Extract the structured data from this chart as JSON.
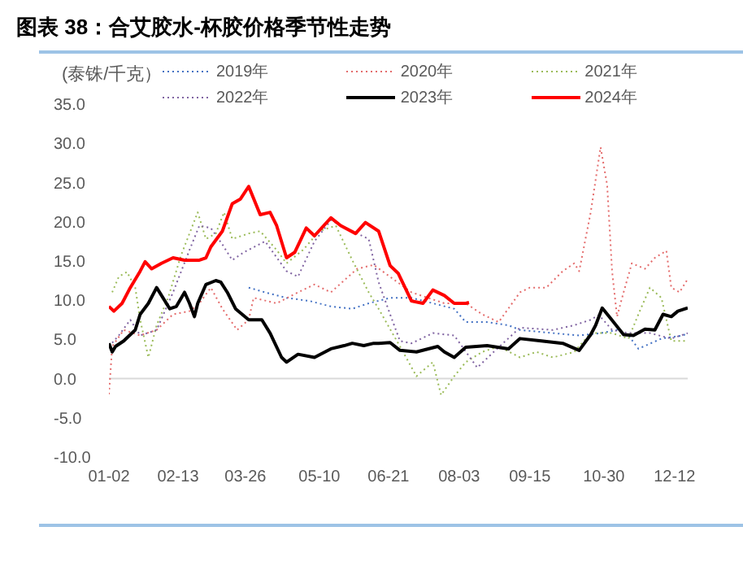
{
  "chart_data": {
    "type": "line",
    "title": "图表 38：合艾胶水-杯胶价格季节性走势",
    "ylabel": "(泰铢/千克）",
    "xlim": [
      "--01-02",
      "--12-20"
    ],
    "xticks": [
      {
        "value": "--01-02",
        "label": "01-02"
      },
      {
        "value": "--02-13",
        "label": "02-13"
      },
      {
        "value": "--03-26",
        "label": "03-26"
      },
      {
        "value": "--05-10",
        "label": "05-10"
      },
      {
        "value": "--06-21",
        "label": "06-21"
      },
      {
        "value": "--08-03",
        "label": "08-03"
      },
      {
        "value": "--09-15",
        "label": "09-15"
      },
      {
        "value": "--10-30",
        "label": "10-30"
      },
      {
        "value": "--12-12",
        "label": "12-12"
      }
    ],
    "ylim": [
      -10,
      35
    ],
    "yticks": [
      {
        "value": -10,
        "label": "-10.0"
      },
      {
        "value": -5,
        "label": "-5.0"
      },
      {
        "value": 0,
        "label": "0.0"
      },
      {
        "value": 5,
        "label": "5.0"
      },
      {
        "value": 10,
        "label": "10.0"
      },
      {
        "value": 15,
        "label": "15.0"
      },
      {
        "value": 20,
        "label": "20.0"
      },
      {
        "value": 25,
        "label": "25.0"
      },
      {
        "value": 30,
        "label": "30.0"
      },
      {
        "value": 35,
        "label": "35.0"
      }
    ],
    "grid": false,
    "legend": "top",
    "marker": "none",
    "ref_lines": [
      {
        "axis": "y",
        "value": 0,
        "color": "#d9d9d9"
      }
    ],
    "series": [
      {
        "name": "2019年",
        "color": "#4472c4",
        "line_style": "dotted",
        "x": [
          "--03-28",
          "--04-07",
          "--04-20",
          "--05-04",
          "--05-17",
          "--05-30",
          "--06-09",
          "--06-22",
          "--07-05",
          "--07-18",
          "--07-31",
          "--08-07",
          "--08-20",
          "--09-02",
          "--09-09",
          "--09-29",
          "--10-15",
          "--10-28",
          "--11-07",
          "--11-14",
          "--11-20",
          "--12-04",
          "--12-17",
          "--12-20"
        ],
        "values": [
          11.6,
          11,
          10.3,
          9.9,
          9.2,
          8.9,
          9.6,
          10.3,
          10.3,
          9.6,
          8.9,
          7.2,
          7.2,
          6.8,
          6.2,
          5.8,
          5.5,
          5.8,
          6.2,
          5.5,
          3.8,
          5.1,
          5.5,
          5.8
        ]
      },
      {
        "name": "2020年",
        "color": "#e46c6c",
        "line_style": "dotted",
        "x": [
          "--01-02",
          "--01-04",
          "--01-11",
          "--01-21",
          "--01-31",
          "--02-10",
          "--02-20",
          "--02-26",
          "--03-05",
          "--03-12",
          "--03-21",
          "--03-28",
          "--03-31",
          "--04-14",
          "--04-27",
          "--05-07",
          "--05-17",
          "--05-26",
          "--06-02",
          "--06-12",
          "--07-05",
          "--07-25",
          "--08-07",
          "--08-17",
          "--08-27",
          "--09-09",
          "--09-15",
          "--09-25",
          "--10-05",
          "--10-12",
          "--10-15",
          "--10-22",
          "--10-28",
          "--11-01",
          "--11-04",
          "--11-07",
          "--11-11",
          "--11-16",
          "--11-24",
          "--11-30",
          "--12-07",
          "--12-10",
          "--12-15",
          "--12-20"
        ],
        "values": [
          -2,
          4.1,
          6.2,
          5.5,
          6.2,
          8.2,
          8.6,
          9.6,
          11.6,
          8.9,
          6.2,
          7.5,
          10.3,
          9.6,
          11,
          12,
          11,
          12.7,
          14,
          14.5,
          11,
          9.6,
          9.6,
          8.2,
          7.2,
          11,
          11.6,
          11.6,
          13.7,
          14.7,
          13.7,
          21.2,
          29.5,
          24.7,
          13.7,
          7.9,
          11,
          14.7,
          14,
          15.4,
          16.3,
          11.6,
          11,
          12.7
        ]
      },
      {
        "name": "2021年",
        "color": "#9bbb59",
        "line_style": "dotted",
        "x": [
          "--01-04",
          "--01-08",
          "--01-13",
          "--01-18",
          "--01-21",
          "--01-26",
          "--01-31",
          "--02-07",
          "--02-15",
          "--02-25",
          "--03-02",
          "--03-08",
          "--03-13",
          "--03-18",
          "--03-28",
          "--04-04",
          "--04-14",
          "--04-20",
          "--04-30",
          "--05-10",
          "--05-20",
          "--05-30",
          "--06-09",
          "--06-15",
          "--06-28",
          "--07-08",
          "--07-18",
          "--07-23",
          "--07-31",
          "--08-07",
          "--08-17",
          "--08-27",
          "--09-09",
          "--09-19",
          "--09-29",
          "--10-12",
          "--10-22",
          "--11-04",
          "--11-14",
          "--11-20",
          "--11-27",
          "--12-04",
          "--12-10",
          "--12-20"
        ],
        "values": [
          11,
          13,
          13.6,
          11.6,
          7.5,
          2.7,
          6.8,
          10.3,
          15.8,
          21.2,
          17.8,
          18.5,
          21.2,
          17.8,
          18.5,
          18.8,
          16.4,
          14.7,
          16.4,
          18.8,
          19.5,
          15.1,
          11,
          8.9,
          4.1,
          0.3,
          2.1,
          -2.1,
          0.3,
          2.1,
          3.4,
          4.1,
          2.7,
          3.4,
          2.7,
          3.4,
          5.8,
          5.8,
          5.1,
          8.2,
          11.6,
          10.3,
          4.8,
          4.8
        ]
      },
      {
        "name": "2022年",
        "color": "#8064a2",
        "line_style": "dotted",
        "x": [
          "--01-02",
          "--01-08",
          "--01-15",
          "--01-21",
          "--01-31",
          "--02-10",
          "--02-20",
          "--02-26",
          "--03-05",
          "--03-12",
          "--03-18",
          "--03-25",
          "--04-07",
          "--04-20",
          "--04-27",
          "--05-07",
          "--05-17",
          "--05-26",
          "--06-02",
          "--06-09",
          "--06-15",
          "--06-22",
          "--06-28",
          "--07-05",
          "--07-18",
          "--07-31",
          "--08-14",
          "--08-24",
          "--09-09",
          "--09-29",
          "--10-12",
          "--10-22",
          "--10-27",
          "--11-04",
          "--11-14",
          "--11-27",
          "--12-10",
          "--12-20"
        ],
        "values": [
          4.1,
          5.5,
          7.5,
          5.5,
          6.2,
          11,
          16.4,
          19.5,
          19.2,
          17.1,
          15.1,
          16.1,
          17.5,
          13.7,
          13,
          17.5,
          20.2,
          19.2,
          18.5,
          17.8,
          12.3,
          8.2,
          4.8,
          4.5,
          5.8,
          5.5,
          1.4,
          3.4,
          6.5,
          6.2,
          6.8,
          7.5,
          8.1,
          6.2,
          5.8,
          5.8,
          5.1,
          5.8
        ]
      },
      {
        "name": "2023年",
        "color": "#000000",
        "line_style": "solid",
        "x": [
          "--01-02",
          "--01-04",
          "--01-06",
          "--01-11",
          "--01-18",
          "--01-21",
          "--01-26",
          "--01-31",
          "--02-03",
          "--02-08",
          "--02-12",
          "--02-17",
          "--02-20",
          "--02-23",
          "--02-25",
          "--03-02",
          "--03-08",
          "--03-11",
          "--03-15",
          "--03-20",
          "--03-28",
          "--04-05",
          "--04-10",
          "--04-17",
          "--04-20",
          "--04-27",
          "--05-07",
          "--05-17",
          "--05-25",
          "--05-30",
          "--06-06",
          "--06-12",
          "--06-15",
          "--06-22",
          "--06-28",
          "--07-08",
          "--07-21",
          "--07-25",
          "--07-31",
          "--08-07",
          "--08-20",
          "--09-02",
          "--09-09",
          "--09-22",
          "--10-05",
          "--10-15",
          "--10-22",
          "--10-25",
          "--10-29",
          "--11-03",
          "--11-11",
          "--11-17",
          "--11-24",
          "--11-30",
          "--12-05",
          "--12-10",
          "--12-14",
          "--12-20"
        ],
        "values": [
          4.5,
          3.4,
          4.1,
          4.8,
          6.2,
          8.2,
          9.6,
          11.6,
          10.6,
          8.9,
          9.2,
          11,
          9.6,
          7.9,
          9.6,
          12,
          12.5,
          12.3,
          11,
          8.9,
          7.5,
          7.5,
          5.8,
          2.7,
          2.1,
          3.1,
          2.7,
          3.8,
          4.2,
          4.5,
          4.2,
          4.5,
          4.5,
          4.6,
          3.6,
          3.4,
          4.1,
          3.4,
          2.7,
          4,
          4.2,
          3.8,
          5.1,
          4.8,
          4.5,
          3.6,
          5.6,
          6.8,
          9,
          7.7,
          5.6,
          5.5,
          6.3,
          6.2,
          8.2,
          7.9,
          8.6,
          9
        ]
      },
      {
        "name": "2024年",
        "color": "#ff0000",
        "line_style": "solid",
        "x": [
          "--01-02",
          "--01-05",
          "--01-10",
          "--01-15",
          "--01-21",
          "--01-24",
          "--01-28",
          "--02-03",
          "--02-10",
          "--02-17",
          "--02-26",
          "--03-02",
          "--03-05",
          "--03-12",
          "--03-18",
          "--03-23",
          "--03-28",
          "--04-04",
          "--04-10",
          "--04-14",
          "--04-20",
          "--04-25",
          "--05-02",
          "--05-07",
          "--05-17",
          "--05-23",
          "--06-01",
          "--06-07",
          "--06-15",
          "--06-22",
          "--06-27",
          "--07-05",
          "--07-12",
          "--07-18",
          "--07-25",
          "--07-31",
          "--08-07",
          "--08-09"
        ],
        "values": [
          9.2,
          8.6,
          9.6,
          11.6,
          13.7,
          14.9,
          14,
          14.7,
          15.4,
          15.1,
          15.1,
          15.4,
          16.8,
          18.8,
          22.3,
          22.9,
          24.5,
          20.9,
          21.2,
          19.5,
          15.4,
          16.1,
          19.2,
          18.2,
          20.5,
          19.5,
          18.5,
          19.9,
          18.8,
          14.4,
          13.4,
          9.9,
          9.6,
          11.3,
          10.6,
          9.6,
          9.6,
          9.7
        ]
      }
    ]
  }
}
